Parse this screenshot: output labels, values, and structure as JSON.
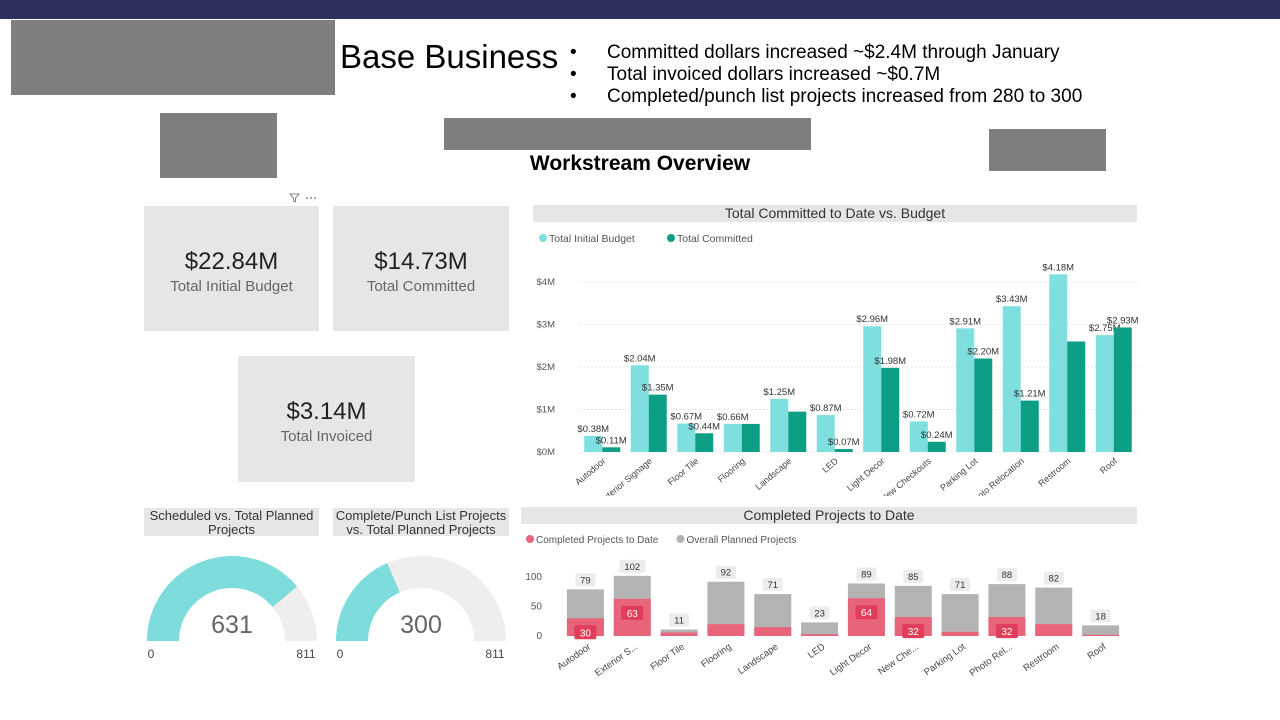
{
  "header": {
    "title": "Base Business",
    "bullets": [
      "Committed dollars increased ~$2.4M through January",
      "Total invoiced dollars increased ~$0.7M",
      "Completed/punch list projects increased from 280 to 300"
    ],
    "bullet_char": "•"
  },
  "overview_title": "Workstream Overview",
  "toolbar": {
    "filter_icon": "filter-icon",
    "more_icon": "more-options-icon"
  },
  "kpis": {
    "budget": {
      "value": "$22.84M",
      "label": "Total Initial Budget"
    },
    "committed": {
      "value": "$14.73M",
      "label": "Total Committed"
    },
    "invoiced": {
      "value": "$3.14M",
      "label": "Total Invoiced"
    }
  },
  "gauges": {
    "scheduled": {
      "title": "Scheduled vs. Total Planned Projects",
      "value": 631,
      "min": 0,
      "max": 811,
      "min_label": "0",
      "max_label": "811",
      "value_label": "631",
      "color": "#7fdcdc"
    },
    "complete": {
      "title": "Complete/Punch List Projects vs. Total Planned Projects",
      "value": 300,
      "min": 0,
      "max": 811,
      "min_label": "0",
      "max_label": "811",
      "value_label": "300",
      "color": "#7fdcdc"
    }
  },
  "chart_data": [
    {
      "type": "bar",
      "title": "Total Committed to Date vs. Budget",
      "categories": [
        "Autodoor",
        "Exterior Signage",
        "Floor Tile",
        "Flooring",
        "Landscape",
        "LED",
        "Light Decor",
        "New Checkouts",
        "Parking Lot",
        "Photo Relocation",
        "Restroom",
        "Roof"
      ],
      "series": [
        {
          "name": "Total Initial Budget",
          "color": "#7fdfdf",
          "values": [
            0.38,
            2.04,
            0.67,
            0.66,
            1.25,
            0.87,
            2.96,
            0.72,
            2.91,
            3.43,
            4.18,
            2.75
          ],
          "labels": [
            "$0.38M",
            "$2.04M",
            "$0.67M",
            "$0.66M",
            "$1.25M",
            "$0.87M",
            "$2.96M",
            "$0.72M",
            "$2.91M",
            "$3.43M",
            "$4.18M",
            "$2.75M"
          ]
        },
        {
          "name": "Total Committed",
          "color": "#0d9e86",
          "values": [
            0.11,
            1.35,
            0.44,
            0.66,
            0.95,
            0.07,
            1.98,
            0.24,
            2.2,
            1.21,
            2.6,
            2.93
          ],
          "labels": [
            "$0.11M",
            "$1.35M",
            "$0.44M",
            "",
            "",
            "$0.07M",
            "$1.98M",
            "$0.24M",
            "$2.20M",
            "$1.21M",
            "",
            "$2.93M"
          ]
        }
      ],
      "ylim": [
        0,
        4.4
      ],
      "yticks": [
        0,
        1,
        2,
        3,
        4
      ],
      "ytick_labels": [
        "$0M",
        "$1M",
        "$2M",
        "$3M",
        "$4M"
      ],
      "legend": "top-left"
    },
    {
      "type": "bar",
      "title": "Completed Projects to Date",
      "categories": [
        "Autodoor",
        "Exterior S...",
        "Floor Tile",
        "Flooring",
        "Landscape",
        "LED",
        "Light Decor",
        "New Che...",
        "Parking Lot",
        "Photo Rel...",
        "Restroom",
        "Roof"
      ],
      "series": [
        {
          "name": "Completed Projects to Date",
          "color": "#e8647a",
          "values": [
            30,
            63,
            6,
            20,
            15,
            3,
            64,
            32,
            7,
            32,
            20,
            2
          ],
          "labels": [
            "30",
            "63",
            "",
            "",
            "",
            "",
            "64",
            "32",
            "",
            "32",
            "",
            ""
          ]
        },
        {
          "name": "Overall Planned Projects",
          "color": "#b3b3b3",
          "values": [
            79,
            102,
            11,
            92,
            71,
            23,
            89,
            85,
            71,
            88,
            82,
            18
          ],
          "labels": [
            "79",
            "102",
            "11",
            "92",
            "71",
            "23",
            "89",
            "85",
            "71",
            "88",
            "82",
            "18"
          ]
        }
      ],
      "ylim": [
        0,
        110
      ],
      "yticks": [
        0,
        50,
        100
      ],
      "ytick_labels": [
        "0",
        "50",
        "100"
      ],
      "legend": "top-left"
    }
  ]
}
